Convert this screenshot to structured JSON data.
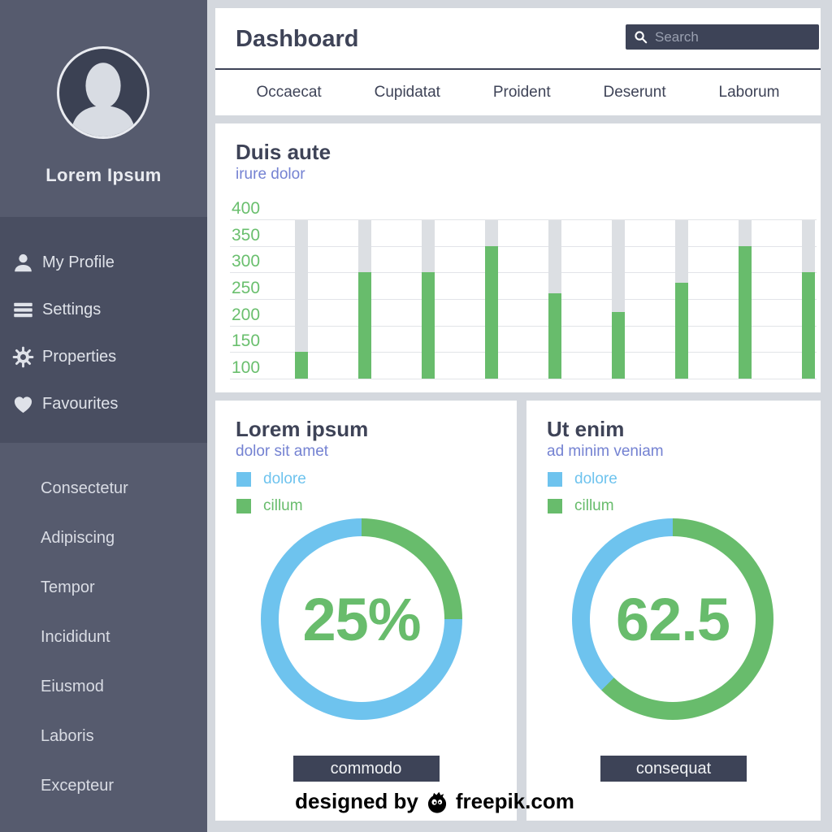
{
  "sidebar": {
    "user_name": "Lorem Ipsum",
    "menu": [
      {
        "icon": "user-icon",
        "label": "My Profile"
      },
      {
        "icon": "menu-icon",
        "label": "Settings"
      },
      {
        "icon": "gear-icon",
        "label": "Properties"
      },
      {
        "icon": "heart-icon",
        "label": "Favourites"
      }
    ],
    "links": [
      "Consectetur",
      "Adipiscing",
      "Tempor",
      "Incididunt",
      "Eiusmod",
      "Laboris",
      "Excepteur"
    ]
  },
  "header": {
    "title": "Dashboard",
    "search_placeholder": "Search",
    "nav": [
      "Occaecat",
      "Cupidatat",
      "Proident",
      "Deserunt",
      "Laborum"
    ]
  },
  "chart_data": [
    {
      "type": "bar",
      "title": "Duis aute",
      "subtitle": "irure dolor",
      "values": [
        150,
        300,
        300,
        350,
        260,
        225,
        280,
        350,
        300
      ],
      "ylim": [
        100,
        400
      ],
      "ytick_step": 50,
      "ytick_labels": [
        "400",
        "350",
        "300",
        "250",
        "200",
        "150",
        "100"
      ],
      "grid": true,
      "bar_color": "#68bc6c",
      "track_color": "#dcdfe3"
    },
    {
      "type": "donut",
      "title": "Lorem ipsum",
      "subtitle": "dolor sit amet",
      "center_label": "25%",
      "button_label": "commodo",
      "series": [
        {
          "name": "cillum",
          "value": 25,
          "color": "#68bc6c"
        },
        {
          "name": "dolore",
          "value": 75,
          "color": "#6ec3ee"
        }
      ],
      "legend": [
        {
          "label": "dolore",
          "color": "#6ec3ee"
        },
        {
          "label": "cillum",
          "color": "#68bc6c"
        }
      ],
      "legend_position": "top-left"
    },
    {
      "type": "donut",
      "title": "Ut enim",
      "subtitle": "ad minim veniam",
      "center_label": "62.5",
      "button_label": "consequat",
      "series": [
        {
          "name": "cillum",
          "value": 62.5,
          "color": "#68bc6c"
        },
        {
          "name": "dolore",
          "value": 37.5,
          "color": "#6ec3ee"
        }
      ],
      "legend": [
        {
          "label": "dolore",
          "color": "#6ec3ee"
        },
        {
          "label": "cillum",
          "color": "#68bc6c"
        }
      ],
      "legend_position": "top-left"
    }
  ],
  "footer": {
    "text_left": "designed by",
    "text_right": "freepik.com"
  },
  "colors": {
    "green": "#68bc6c",
    "blue": "#6ec3ee",
    "navy": "#3e4357",
    "periwinkle": "#7482d2",
    "sidebar_dark": "#494e61",
    "sidebar_light": "#565b6e",
    "background": "#d4d8de"
  }
}
